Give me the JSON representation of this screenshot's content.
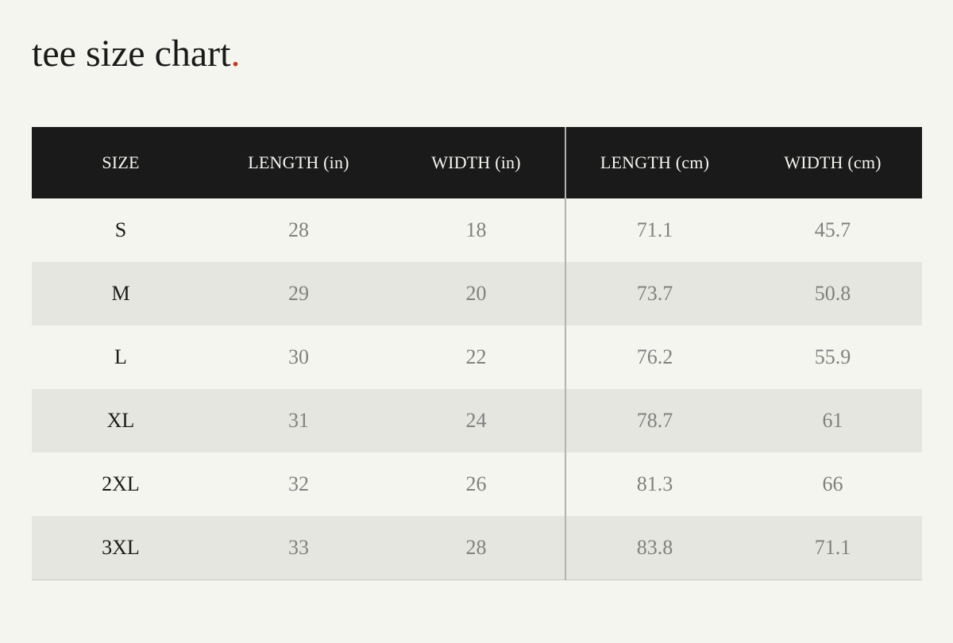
{
  "page": {
    "title": "tee size chart",
    "title_dot": ".",
    "accent_color": "#c0392b"
  },
  "table": {
    "headers": [
      "SIZE",
      "LENGTH (in)",
      "WIDTH (in)",
      "LENGTH (cm)",
      "WIDTH (cm)"
    ],
    "rows": [
      [
        "S",
        "28",
        "18",
        "71.1",
        "45.7"
      ],
      [
        "M",
        "29",
        "20",
        "73.7",
        "50.8"
      ],
      [
        "L",
        "30",
        "22",
        "76.2",
        "55.9"
      ],
      [
        "XL",
        "31",
        "24",
        "78.7",
        "61"
      ],
      [
        "2XL",
        "32",
        "26",
        "81.3",
        "66"
      ],
      [
        "3XL",
        "33",
        "28",
        "83.8",
        "71.1"
      ]
    ]
  }
}
